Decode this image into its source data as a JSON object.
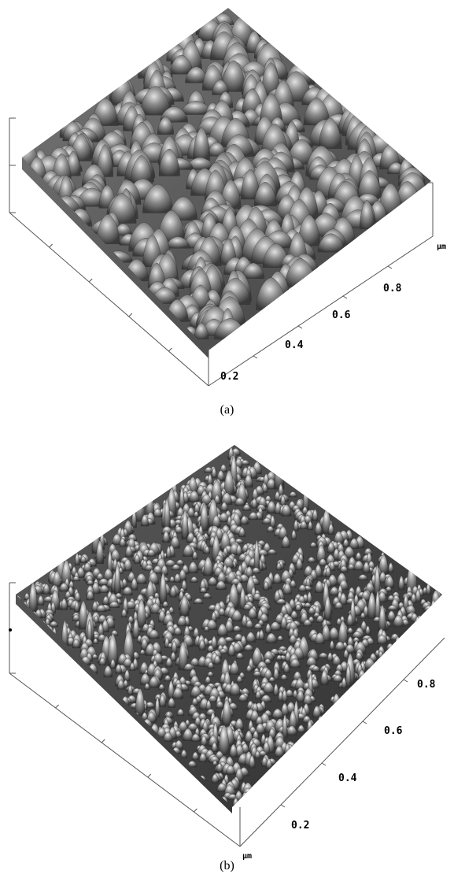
{
  "figures": [
    {
      "id": "a",
      "caption": "(a)",
      "unit": "μm",
      "tick_labels": [
        "0.2",
        "0.4",
        "0.6",
        "0.8"
      ]
    },
    {
      "id": "b",
      "caption": "(b)",
      "unit": "μm",
      "tick_labels": [
        "0.2",
        "0.4",
        "0.6",
        "0.8"
      ]
    }
  ],
  "colors": {
    "surface_dark": "#2f2f2f",
    "surface_mid": "#6e6e6e",
    "surface_light": "#d8d8d8",
    "axis": "#555555"
  }
}
